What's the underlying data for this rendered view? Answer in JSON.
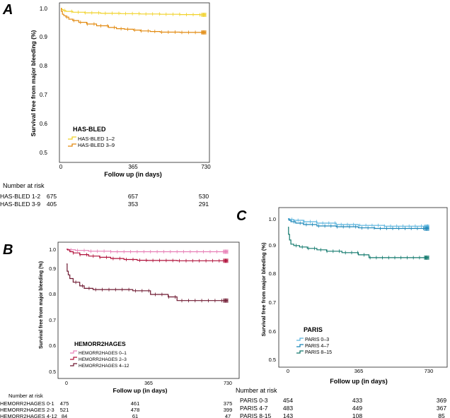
{
  "chart_data": [
    {
      "panel": "A",
      "type": "line",
      "subtype": "kaplan-meier",
      "ylabel": "Survival free from major bleeding (%)",
      "xlabel": "Follow up (in days)",
      "xticks": [
        0,
        365,
        730
      ],
      "yticks": [
        "0.5",
        "0.6",
        "0.7",
        "0.8",
        "0.9",
        "1.0"
      ],
      "xlim": [
        0,
        730
      ],
      "ylim": [
        0.5,
        1.0
      ],
      "legend_title": "HAS-BLED",
      "series": [
        {
          "name": "HAS-BLED 1–2",
          "color": "#f1d22a",
          "x": [
            0,
            5,
            12,
            25,
            60,
            120,
            200,
            300,
            400,
            500,
            600,
            700,
            730
          ],
          "y": [
            1.0,
            0.996,
            0.993,
            0.99,
            0.987,
            0.985,
            0.983,
            0.982,
            0.981,
            0.98,
            0.979,
            0.978,
            0.978
          ]
        },
        {
          "name": "HAS-BLED 3–9",
          "color": "#e28a10",
          "x": [
            0,
            3,
            8,
            15,
            25,
            40,
            60,
            90,
            130,
            180,
            240,
            280,
            320,
            365,
            400,
            450,
            500,
            600,
            700,
            730
          ],
          "y": [
            1.0,
            0.99,
            0.98,
            0.975,
            0.97,
            0.963,
            0.958,
            0.952,
            0.946,
            0.94,
            0.934,
            0.93,
            0.928,
            0.925,
            0.922,
            0.92,
            0.918,
            0.917,
            0.917,
            0.917
          ]
        }
      ],
      "risk_table": {
        "header": "Number at risk",
        "rows": [
          {
            "label": "HAS-BLED 1-2",
            "values": [
              "675",
              "657",
              "530"
            ]
          },
          {
            "label": "HAS-BLED 3-9",
            "values": [
              "405",
              "353",
              "291"
            ]
          }
        ]
      }
    },
    {
      "panel": "B",
      "type": "line",
      "subtype": "kaplan-meier",
      "ylabel": "Survival free from major bleeding (%)",
      "xlabel": "Follow up (in days)",
      "xticks": [
        0,
        365,
        730
      ],
      "yticks": [
        "0.5",
        "0.6",
        "0.7",
        "0.8",
        "0.9",
        "1.0"
      ],
      "xlim": [
        0,
        730
      ],
      "ylim": [
        0.5,
        1.0
      ],
      "legend_title": "HEMORR2HAGES",
      "series": [
        {
          "name": "HEMORR2HAGES 0–1",
          "color": "#e87fb6",
          "x": [
            0,
            10,
            40,
            100,
            200,
            365,
            500,
            730
          ],
          "y": [
            1.0,
            0.998,
            0.995,
            0.992,
            0.99,
            0.99,
            0.99,
            0.99
          ]
        },
        {
          "name": "HEMORR2HAGES 2–3",
          "color": "#b0103a",
          "x": [
            0,
            5,
            15,
            30,
            60,
            100,
            150,
            200,
            260,
            320,
            365,
            500,
            730
          ],
          "y": [
            1.0,
            0.997,
            0.99,
            0.985,
            0.978,
            0.972,
            0.967,
            0.962,
            0.958,
            0.955,
            0.954,
            0.953,
            0.953
          ]
        },
        {
          "name": "HEMORR2HAGES 4–12",
          "color": "#6e1830",
          "x": [
            0,
            3,
            8,
            15,
            30,
            60,
            80,
            120,
            200,
            300,
            380,
            460,
            500,
            730
          ],
          "y": [
            0.94,
            0.91,
            0.895,
            0.88,
            0.865,
            0.85,
            0.84,
            0.835,
            0.835,
            0.83,
            0.815,
            0.805,
            0.79,
            0.79
          ]
        }
      ],
      "risk_table": {
        "header": "Number at risk",
        "rows": [
          {
            "label": "HEMORR2HAGES 0-1",
            "values": [
              "475",
              "461",
              "375"
            ]
          },
          {
            "label": "HEMORR2HAGES 2-3",
            "values": [
              "521",
              "478",
              "399"
            ]
          },
          {
            "label": "HEMORR2HAGES 4-12",
            "values": [
              "84",
              "61",
              "47"
            ]
          }
        ]
      }
    },
    {
      "panel": "C",
      "type": "line",
      "subtype": "kaplan-meier",
      "ylabel": "Survival free from major bleeding (%)",
      "xlabel": "Follow up (in days)",
      "xticks": [
        0,
        365,
        730
      ],
      "yticks": [
        "0.5",
        "0.6",
        "0.7",
        "0.8",
        "0.9",
        "1.0"
      ],
      "xlim": [
        0,
        730
      ],
      "ylim": [
        0.5,
        1.0
      ],
      "legend_title": "PARIS",
      "series": [
        {
          "name": "PARIS 0–3",
          "color": "#5ab4de",
          "x": [
            0,
            10,
            30,
            80,
            150,
            250,
            365,
            500,
            730
          ],
          "y": [
            1.0,
            0.998,
            0.995,
            0.99,
            0.985,
            0.98,
            0.977,
            0.974,
            0.972
          ]
        },
        {
          "name": "PARIS 4–7",
          "color": "#1c86b8",
          "x": [
            0,
            5,
            15,
            40,
            80,
            150,
            250,
            365,
            450,
            730
          ],
          "y": [
            1.0,
            0.995,
            0.99,
            0.985,
            0.98,
            0.975,
            0.972,
            0.968,
            0.966,
            0.965
          ]
        },
        {
          "name": "PARIS 8–15",
          "color": "#10786c",
          "x": [
            0,
            3,
            8,
            15,
            30,
            60,
            100,
            150,
            200,
            280,
            365,
            420,
            730
          ],
          "y": [
            0.97,
            0.945,
            0.925,
            0.91,
            0.905,
            0.9,
            0.895,
            0.89,
            0.885,
            0.88,
            0.872,
            0.862,
            0.862
          ]
        }
      ],
      "risk_table": {
        "header": "Number at risk",
        "rows": [
          {
            "label": "PARIS 0-3",
            "values": [
              "454",
              "433",
              "369"
            ]
          },
          {
            "label": "PARIS 4-7",
            "values": [
              "483",
              "449",
              "367"
            ]
          },
          {
            "label": "PARIS 8-15",
            "values": [
              "143",
              "108",
              "85"
            ]
          }
        ]
      }
    }
  ]
}
